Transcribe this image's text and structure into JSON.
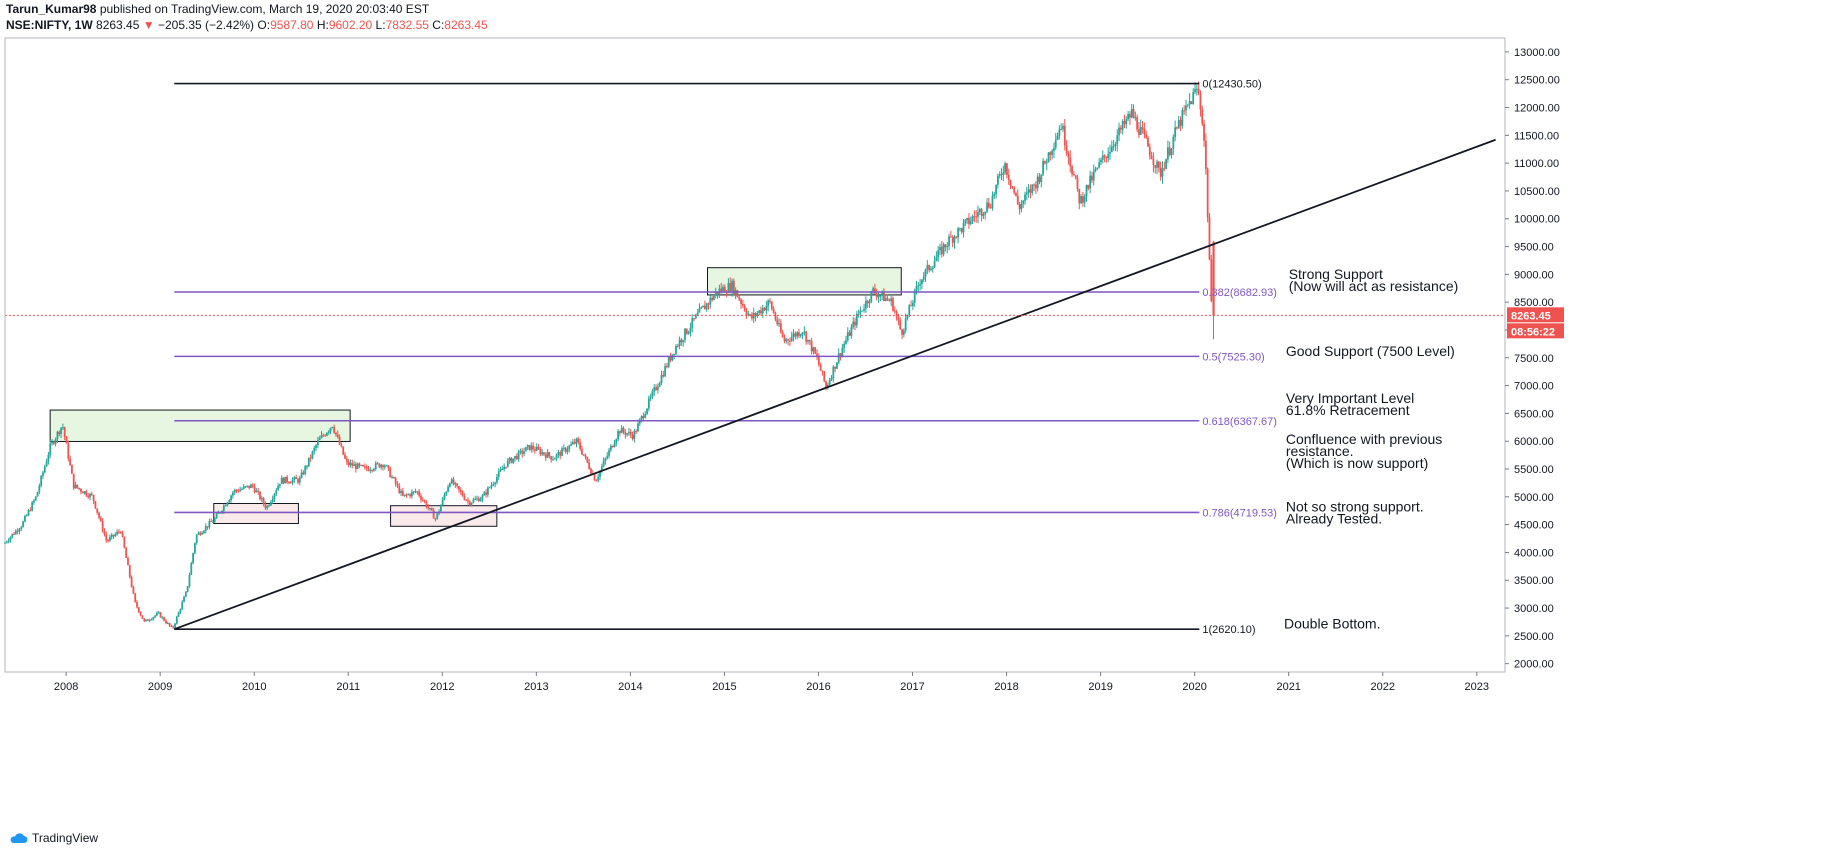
{
  "header": {
    "author": "Tarun_Kumar98",
    "published": "published on TradingView.com, March 19, 2020 20:03:40 EST",
    "symbol": "NSE:NIFTY, 1W",
    "last": "8263.45",
    "change_arrow": "▼",
    "change": "−205.35 (−2.42%)",
    "o_label": "O:",
    "o": "9587.80",
    "h_label": "H:",
    "h": "9602.20",
    "l_label": "L:",
    "l": "7832.55",
    "c_label": "C:",
    "c": "8263.45"
  },
  "footer": {
    "brand": "TradingView"
  },
  "colors": {
    "up": "#26a69a",
    "down": "#ef5350",
    "fib": "#7e57c2",
    "greenZone": "#e6f6e0",
    "pinkZone": "#fbeaea"
  },
  "chart_data": {
    "type": "candlestick",
    "title": "NSE:NIFTY, 1W",
    "ylim": [
      1850,
      13250
    ],
    "xlim": [
      2007.35,
      2023.3
    ],
    "y_ticks": [
      "13000.00",
      "12500.00",
      "12000.00",
      "11500.00",
      "11000.00",
      "10500.00",
      "10000.00",
      "9500.00",
      "9000.00",
      "8500.00",
      "8000.00",
      "7500.00",
      "7000.00",
      "6500.00",
      "6000.00",
      "5500.00",
      "5000.00",
      "4500.00",
      "4000.00",
      "3500.00",
      "3000.00",
      "2500.00",
      "2000.00"
    ],
    "x_ticks": [
      "2008",
      "2009",
      "2010",
      "2011",
      "2012",
      "2013",
      "2014",
      "2015",
      "2016",
      "2017",
      "2018",
      "2019",
      "2020",
      "2021",
      "2022",
      "2023"
    ],
    "price_path": [
      [
        2007.35,
        4150
      ],
      [
        2007.55,
        4500
      ],
      [
        2007.7,
        5000
      ],
      [
        2007.85,
        5900
      ],
      [
        2007.98,
        6300
      ],
      [
        2008.1,
        5200
      ],
      [
        2008.3,
        5000
      ],
      [
        2008.45,
        4200
      ],
      [
        2008.6,
        4400
      ],
      [
        2008.75,
        3100
      ],
      [
        2008.85,
        2750
      ],
      [
        2009.0,
        2900
      ],
      [
        2009.15,
        2620
      ],
      [
        2009.3,
        3300
      ],
      [
        2009.4,
        4300
      ],
      [
        2009.6,
        4600
      ],
      [
        2009.8,
        5100
      ],
      [
        2010.0,
        5200
      ],
      [
        2010.15,
        4800
      ],
      [
        2010.3,
        5300
      ],
      [
        2010.5,
        5300
      ],
      [
        2010.7,
        6000
      ],
      [
        2010.85,
        6300
      ],
      [
        2011.0,
        5600
      ],
      [
        2011.2,
        5500
      ],
      [
        2011.4,
        5600
      ],
      [
        2011.6,
        5000
      ],
      [
        2011.75,
        5100
      ],
      [
        2011.95,
        4600
      ],
      [
        2012.1,
        5300
      ],
      [
        2012.3,
        4900
      ],
      [
        2012.45,
        5000
      ],
      [
        2012.7,
        5600
      ],
      [
        2012.95,
        5900
      ],
      [
        2013.2,
        5700
      ],
      [
        2013.45,
        6000
      ],
      [
        2013.65,
        5300
      ],
      [
        2013.9,
        6200
      ],
      [
        2014.05,
        6100
      ],
      [
        2014.3,
        7000
      ],
      [
        2014.5,
        7700
      ],
      [
        2014.75,
        8300
      ],
      [
        2014.95,
        8700
      ],
      [
        2015.1,
        8800
      ],
      [
        2015.3,
        8200
      ],
      [
        2015.5,
        8500
      ],
      [
        2015.65,
        7800
      ],
      [
        2015.85,
        8000
      ],
      [
        2016.0,
        7500
      ],
      [
        2016.1,
        6970
      ],
      [
        2016.25,
        7600
      ],
      [
        2016.45,
        8300
      ],
      [
        2016.6,
        8700
      ],
      [
        2016.8,
        8500
      ],
      [
        2016.9,
        7950
      ],
      [
        2017.1,
        8900
      ],
      [
        2017.4,
        9600
      ],
      [
        2017.65,
        10000
      ],
      [
        2017.85,
        10300
      ],
      [
        2018.0,
        11000
      ],
      [
        2018.15,
        10200
      ],
      [
        2018.35,
        10700
      ],
      [
        2018.6,
        11700
      ],
      [
        2018.8,
        10300
      ],
      [
        2018.95,
        10800
      ],
      [
        2019.2,
        11500
      ],
      [
        2019.35,
        11900
      ],
      [
        2019.55,
        11200
      ],
      [
        2019.65,
        10800
      ],
      [
        2019.85,
        11700
      ],
      [
        2020.0,
        12200
      ],
      [
        2020.05,
        12350
      ],
      [
        2020.1,
        11800
      ],
      [
        2020.13,
        11200
      ],
      [
        2020.16,
        10000
      ],
      [
        2020.2,
        8263
      ]
    ],
    "last_candle": {
      "open": 9587.8,
      "high": 9602.2,
      "low": 7832.55,
      "close": 8263.45
    },
    "fib_levels": [
      {
        "ratio": "0",
        "label": "0(12430.50)",
        "value": 12430.5,
        "color": "#131722"
      },
      {
        "ratio": "0.382",
        "label": "0.382(8682.93)",
        "value": 8682.93,
        "color": "#7e57c2"
      },
      {
        "ratio": "0.5",
        "label": "0.5(7525.30)",
        "value": 7525.3,
        "color": "#7e57c2"
      },
      {
        "ratio": "0.618",
        "label": "0.618(6367.67)",
        "value": 6367.67,
        "color": "#7e57c2"
      },
      {
        "ratio": "0.786",
        "label": "0.786(4719.53)",
        "value": 4719.53,
        "color": "#7e57c2"
      },
      {
        "ratio": "1",
        "label": "1(2620.10)",
        "value": 2620.1,
        "color": "#131722"
      }
    ],
    "fib_range_x": [
      2009.15,
      2020.05
    ],
    "trendline": {
      "x1": 2009.15,
      "y1": 2620,
      "x2": 2023.2,
      "y2": 11420
    },
    "zones": [
      {
        "name": "zone-2008-high",
        "x1": 2007.83,
        "x2": 2011.02,
        "y1": 5995,
        "y2": 6560,
        "fill": "#e6f6e0"
      },
      {
        "name": "zone-2015-high",
        "x1": 2014.82,
        "x2": 2016.88,
        "y1": 8630,
        "y2": 9120,
        "fill": "#e6f6e0"
      },
      {
        "name": "zone-2010-low",
        "x1": 2009.57,
        "x2": 2010.47,
        "y1": 4520,
        "y2": 4880,
        "fill": "#fbeaea"
      },
      {
        "name": "zone-2012-low",
        "x1": 2011.45,
        "x2": 2012.58,
        "y1": 4470,
        "y2": 4840,
        "fill": "#fbeaea"
      }
    ],
    "annotations": [
      {
        "name": "annot-strong-support",
        "x": 2021.0,
        "y": 8920,
        "lines": [
          "Strong Support",
          "(Now will act as resistance)"
        ]
      },
      {
        "name": "annot-good-support",
        "x": 2020.97,
        "y": 7535,
        "lines": [
          "Good Support (7500 Level)"
        ]
      },
      {
        "name": "annot-very-important",
        "x": 2020.97,
        "y": 6690,
        "lines": [
          "Very Important Level",
          "61.8% Retracement"
        ]
      },
      {
        "name": "annot-confluence",
        "x": 2020.97,
        "y": 5950,
        "lines": [
          "Confluence with previous",
          "resistance.",
          "(Which is now support)"
        ]
      },
      {
        "name": "annot-not-so-strong",
        "x": 2020.97,
        "y": 4740,
        "lines": [
          "Not so strong support.",
          "Already Tested."
        ]
      },
      {
        "name": "annot-double-bottom",
        "x": 2020.95,
        "y": 2635,
        "lines": [
          "Double Bottom."
        ]
      }
    ],
    "price_label": "8263.45",
    "countdown_label": "08:56:22",
    "current_price": 8263.45
  }
}
